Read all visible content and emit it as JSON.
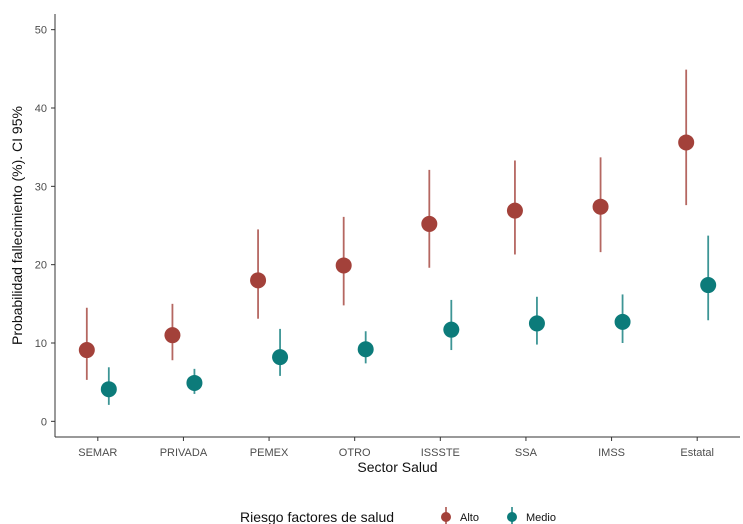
{
  "chart_data": {
    "type": "scatter",
    "xlabel": "Sector Salud",
    "ylabel": "Probabilidad fallecimiento (%). CI 95%",
    "ylim": [
      -2,
      52
    ],
    "yticks": [
      0,
      10,
      20,
      30,
      40,
      50
    ],
    "grid": false,
    "legend_position": "bottom",
    "categories": [
      "SEMAR",
      "PRIVADA",
      "PEMEX",
      "OTRO",
      "ISSSTE",
      "SSA",
      "IMSS",
      "Estatal"
    ],
    "legend": {
      "title": "Riesgo factores de salud"
    },
    "series": [
      {
        "name": "Alto",
        "color": "#a3413a",
        "values": [
          9.1,
          11.0,
          18.0,
          19.9,
          25.2,
          26.9,
          27.4,
          35.6
        ],
        "lower": [
          5.3,
          7.8,
          13.1,
          14.8,
          19.6,
          21.3,
          21.6,
          27.6
        ],
        "upper": [
          14.5,
          15.0,
          24.5,
          26.1,
          32.1,
          33.3,
          33.7,
          44.9
        ]
      },
      {
        "name": "Medio",
        "color": "#0c7b7a",
        "values": [
          4.1,
          4.9,
          8.2,
          9.2,
          11.7,
          12.5,
          12.7,
          17.4
        ],
        "lower": [
          2.1,
          3.5,
          5.8,
          7.4,
          9.1,
          9.8,
          10.0,
          12.9
        ],
        "upper": [
          6.9,
          6.7,
          11.8,
          11.5,
          15.5,
          15.9,
          16.2,
          23.7
        ]
      }
    ]
  }
}
